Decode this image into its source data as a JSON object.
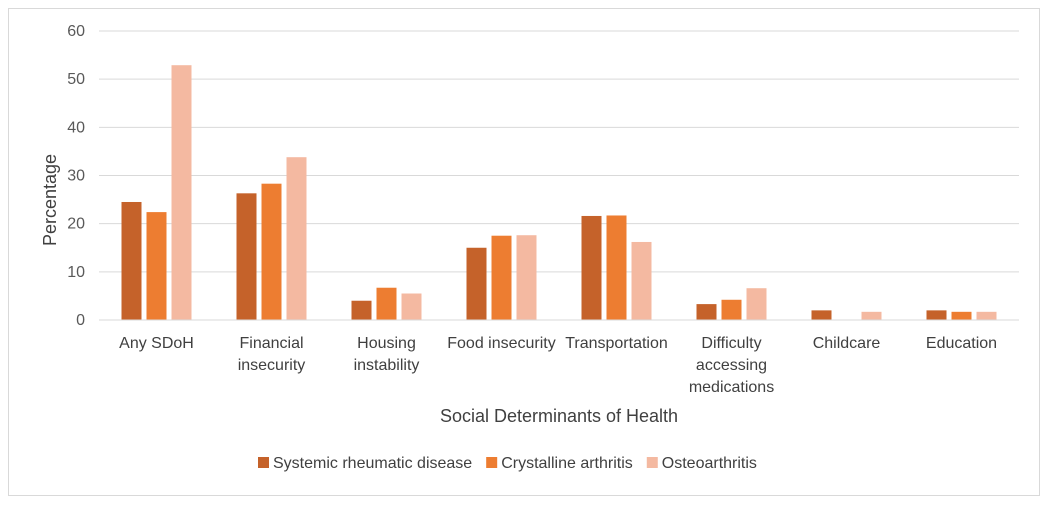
{
  "chart_data": {
    "type": "bar",
    "title": "",
    "xlabel": "Social Determinants of Health",
    "ylabel": "Percentage",
    "ylim": [
      0,
      60
    ],
    "yticks": [
      0,
      10,
      20,
      30,
      40,
      50,
      60
    ],
    "grid": true,
    "legend_position": "bottom",
    "categories": [
      [
        "Any SDoH"
      ],
      [
        "Financial",
        "insecurity"
      ],
      [
        "Housing",
        "instability"
      ],
      [
        "Food insecurity"
      ],
      [
        "Transportation"
      ],
      [
        "Difficulty",
        "accessing",
        "medications"
      ],
      [
        "Childcare"
      ],
      [
        "Education"
      ]
    ],
    "series": [
      {
        "name": "Systemic rheumatic disease",
        "color": "#C5622A",
        "values": [
          24.5,
          26.3,
          4.0,
          15.0,
          21.6,
          3.3,
          2.0,
          2.0
        ]
      },
      {
        "name": "Crystalline arthritis",
        "color": "#ED7D31",
        "values": [
          22.4,
          28.3,
          6.7,
          17.5,
          21.7,
          4.2,
          0,
          1.7
        ]
      },
      {
        "name": "Osteoarthritis",
        "color": "#F4B9A1",
        "values": [
          52.9,
          33.8,
          5.5,
          17.6,
          16.2,
          6.6,
          1.7,
          1.7
        ]
      }
    ]
  }
}
